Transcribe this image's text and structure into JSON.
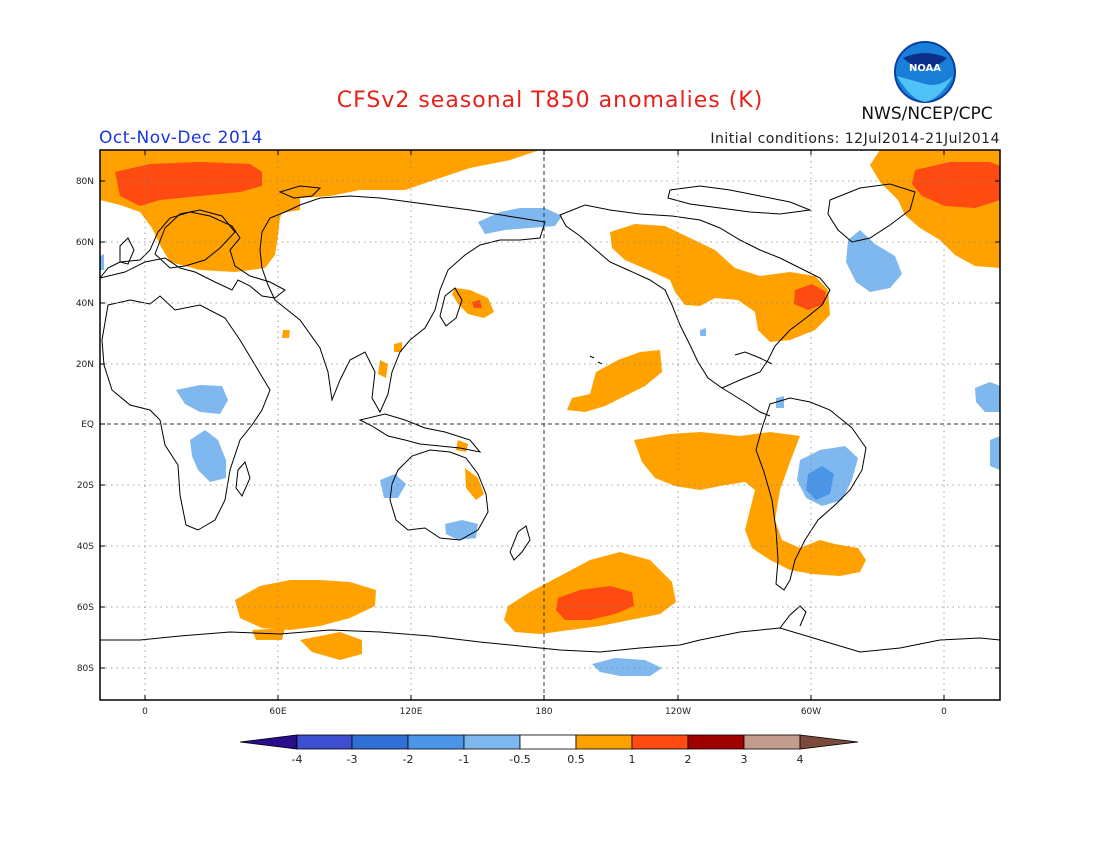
{
  "header": {
    "title": "CFSv2 seasonal T850 anomalies (K)",
    "period": "Oct-Nov-Dec 2014",
    "initial_conditions": "Initial conditions: 12Jul2014-21Jul2014",
    "agency": "NWS/NCEP/CPC",
    "logo_text": "NOAA",
    "logo_icon": "noaa-logo-icon"
  },
  "axes": {
    "lat_labels": [
      "80N",
      "60N",
      "40N",
      "20N",
      "EQ",
      "20S",
      "40S",
      "60S",
      "80S"
    ],
    "lon_labels": [
      "0",
      "60E",
      "120E",
      "180",
      "120W",
      "60W",
      "0"
    ]
  },
  "colorbar": {
    "labels": [
      "-4",
      "-3",
      "-2",
      "-1",
      "-0.5",
      "0.5",
      "1",
      "2",
      "3",
      "4"
    ],
    "colors": [
      "#2a0d8a",
      "#3d4fcf",
      "#2f6fd6",
      "#4a95e8",
      "#7fb8ee",
      "#ffffff",
      "#ffa200",
      "#ff4a12",
      "#a00000",
      "#c39c8d",
      "#7a4a3a"
    ]
  },
  "colors": {
    "warm_1": "#ffa200",
    "warm_2": "#ff4a12",
    "cool_1": "#7fb8ee",
    "cool_2": "#4a95e8",
    "title_red": "#e8201a",
    "period_blue": "#1a36e0"
  }
}
